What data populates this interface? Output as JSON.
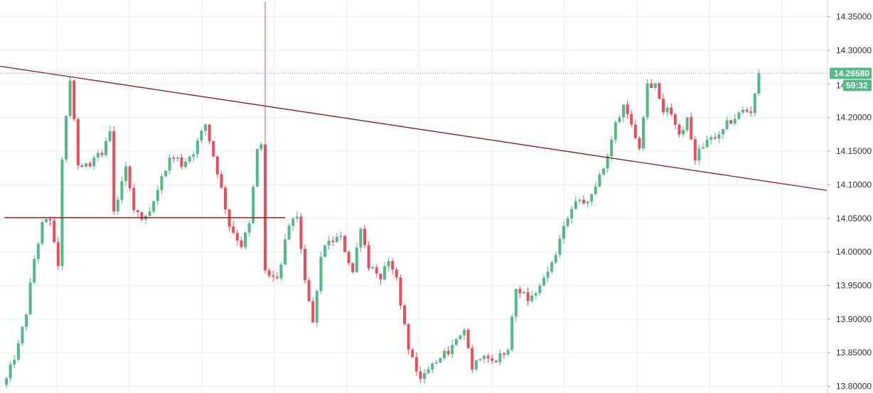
{
  "chart_data": {
    "type": "candlestick",
    "title": "",
    "xlabel": "",
    "ylabel": "",
    "ylim": [
      13.79,
      14.375
    ],
    "y_ticks": [
      "13.80000",
      "13.85000",
      "13.90000",
      "13.95000",
      "14.00000",
      "14.05000",
      "14.10000",
      "14.15000",
      "14.20000",
      "14.25000",
      "14.30000",
      "14.35000"
    ],
    "y_tick_values": [
      13.8,
      13.85,
      13.9,
      13.95,
      14.0,
      14.05,
      14.1,
      14.15,
      14.2,
      14.25,
      14.3,
      14.35
    ],
    "grid": true,
    "colors": {
      "up": "#53b987",
      "down": "#eb4d5c",
      "trendline": "#8b1a1a",
      "price_line": "#53b987",
      "grid": "#e9ecf1",
      "axis_text": "#2a2e39"
    },
    "current_price": 14.2658,
    "current_price_label": "14.26580",
    "countdown_label": "59:32",
    "hidden_tick_fragment": "14",
    "trendlines": [
      {
        "from": {
          "bar": 0,
          "price": 14.275
        },
        "to": {
          "bar": 200,
          "price": 14.097
        }
      },
      {
        "from": {
          "bar": 0,
          "price": 14.051
        },
        "to": {
          "bar": 70,
          "price": 14.051
        }
      }
    ],
    "close_path": [
      [
        0,
        13.81
      ],
      [
        3,
        13.86
      ],
      [
        5,
        13.91
      ],
      [
        7,
        13.99
      ],
      [
        9,
        14.04
      ],
      [
        11,
        14.05
      ],
      [
        13,
        13.98
      ],
      [
        14,
        14.14
      ],
      [
        16,
        14.26
      ],
      [
        18,
        14.13
      ],
      [
        21,
        14.13
      ],
      [
        24,
        14.15
      ],
      [
        26,
        14.18
      ],
      [
        27,
        14.06
      ],
      [
        30,
        14.13
      ],
      [
        32,
        14.06
      ],
      [
        35,
        14.05
      ],
      [
        38,
        14.09
      ],
      [
        41,
        14.14
      ],
      [
        44,
        14.13
      ],
      [
        47,
        14.15
      ],
      [
        50,
        14.19
      ],
      [
        53,
        14.12
      ],
      [
        56,
        14.04
      ],
      [
        59,
        14.01
      ],
      [
        61,
        14.04
      ],
      [
        63,
        14.15
      ],
      [
        64,
        14.16
      ],
      [
        65,
        13.97
      ],
      [
        68,
        13.96
      ],
      [
        71,
        14.04
      ],
      [
        73,
        14.05
      ],
      [
        75,
        13.96
      ],
      [
        77,
        13.89
      ],
      [
        79,
        13.99
      ],
      [
        81,
        14.02
      ],
      [
        84,
        14.02
      ],
      [
        87,
        13.97
      ],
      [
        89,
        14.04
      ],
      [
        91,
        13.98
      ],
      [
        94,
        13.96
      ],
      [
        96,
        13.99
      ],
      [
        98,
        13.96
      ],
      [
        99,
        13.92
      ],
      [
        101,
        13.86
      ],
      [
        104,
        13.81
      ],
      [
        107,
        13.83
      ],
      [
        109,
        13.84
      ],
      [
        112,
        13.86
      ],
      [
        115,
        13.88
      ],
      [
        117,
        13.83
      ],
      [
        120,
        13.85
      ],
      [
        123,
        13.84
      ],
      [
        126,
        13.86
      ],
      [
        128,
        13.95
      ],
      [
        131,
        13.93
      ],
      [
        134,
        13.95
      ],
      [
        137,
        13.98
      ],
      [
        140,
        14.04
      ],
      [
        143,
        14.07
      ],
      [
        146,
        14.08
      ],
      [
        149,
        14.11
      ],
      [
        151,
        14.14
      ],
      [
        153,
        14.19
      ],
      [
        155,
        14.22
      ],
      [
        157,
        14.19
      ],
      [
        159,
        14.16
      ],
      [
        161,
        14.25
      ],
      [
        163,
        14.25
      ],
      [
        165,
        14.21
      ],
      [
        167,
        14.21
      ],
      [
        169,
        14.17
      ],
      [
        171,
        14.2
      ],
      [
        173,
        14.14
      ],
      [
        175,
        14.16
      ],
      [
        177,
        14.17
      ],
      [
        179,
        14.17
      ],
      [
        181,
        14.19
      ],
      [
        183,
        14.2
      ],
      [
        185,
        14.21
      ],
      [
        187,
        14.21
      ],
      [
        189,
        14.2658
      ]
    ]
  }
}
